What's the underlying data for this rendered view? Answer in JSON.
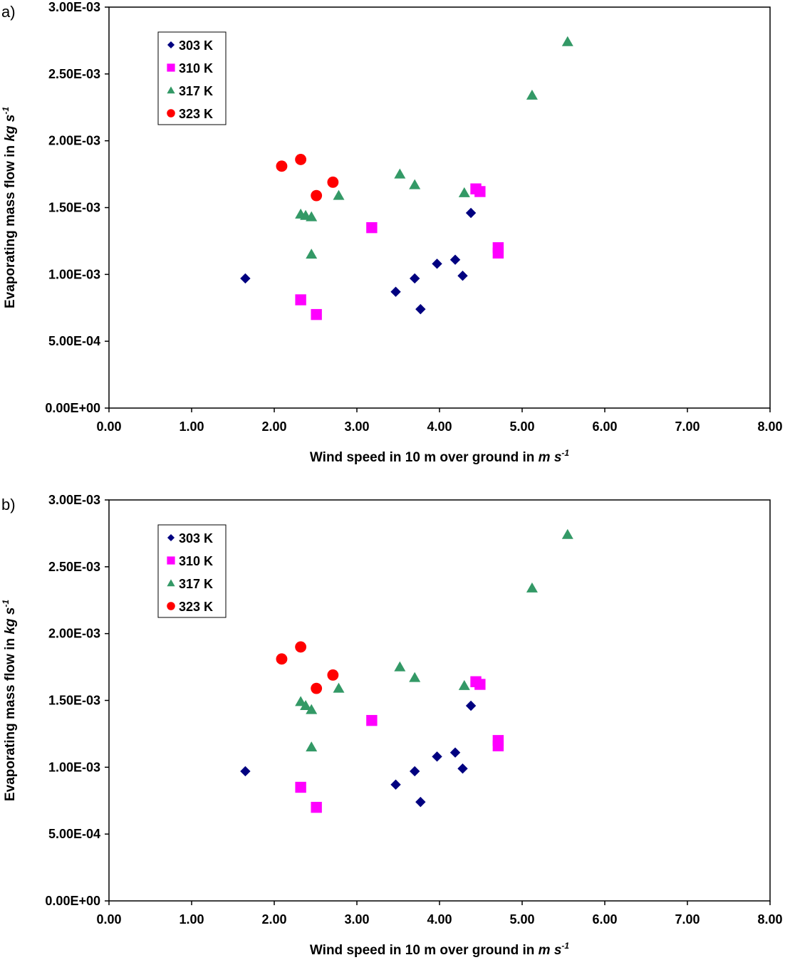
{
  "chart_data": [
    {
      "type": "scatter",
      "panel_label": "a)",
      "xlabel": "Wind speed in 10 m over ground in",
      "xlabel_unit": "m s",
      "xlabel_exp": "-1",
      "ylabel": "Evaporating mass flow in",
      "ylabel_unit": "kg s",
      "ylabel_exp": "-1",
      "xlim": [
        0,
        8
      ],
      "ylim": [
        0,
        0.003
      ],
      "x_ticks": [
        "0.00",
        "1.00",
        "2.00",
        "3.00",
        "4.00",
        "5.00",
        "6.00",
        "7.00",
        "8.00"
      ],
      "y_ticks": [
        "0.00E+00",
        "5.00E-04",
        "1.00E-03",
        "1.50E-03",
        "2.00E-03",
        "2.50E-03",
        "3.00E-03"
      ],
      "grid": false,
      "legend_position": "top-left",
      "series": [
        {
          "name": "303 K",
          "marker": "diamond",
          "color": "#000080",
          "points": [
            [
              1.65,
              0.00097
            ],
            [
              3.47,
              0.00087
            ],
            [
              3.7,
              0.00097
            ],
            [
              3.77,
              0.00074
            ],
            [
              3.97,
              0.00108
            ],
            [
              4.19,
              0.00111
            ],
            [
              4.28,
              0.00099
            ],
            [
              4.38,
              0.00146
            ]
          ]
        },
        {
          "name": "310 K",
          "marker": "square",
          "color": "#ff00ff",
          "points": [
            [
              2.32,
              0.00081
            ],
            [
              2.51,
              0.0007
            ],
            [
              3.18,
              0.00135
            ],
            [
              4.44,
              0.00164
            ],
            [
              4.49,
              0.00162
            ],
            [
              4.71,
              0.0012
            ],
            [
              4.71,
              0.00116
            ]
          ]
        },
        {
          "name": "317 K",
          "marker": "triangle",
          "color": "#339966",
          "points": [
            [
              2.32,
              0.00145
            ],
            [
              2.38,
              0.00144
            ],
            [
              2.45,
              0.00143
            ],
            [
              2.45,
              0.00115
            ],
            [
              2.78,
              0.00159
            ],
            [
              3.52,
              0.00175
            ],
            [
              3.7,
              0.00167
            ],
            [
              4.3,
              0.00161
            ],
            [
              5.12,
              0.00234
            ],
            [
              5.55,
              0.00274
            ]
          ]
        },
        {
          "name": "323 K",
          "marker": "circle",
          "color": "#ff0000",
          "points": [
            [
              2.09,
              0.00181
            ],
            [
              2.32,
              0.00186
            ],
            [
              2.51,
              0.00159
            ],
            [
              2.71,
              0.00169
            ]
          ]
        }
      ]
    },
    {
      "type": "scatter",
      "panel_label": "b)",
      "xlabel": "Wind speed in 10 m over ground in",
      "xlabel_unit": "m s",
      "xlabel_exp": "-1",
      "ylabel": "Evaporating mass flow in",
      "ylabel_unit": "kg s",
      "ylabel_exp": "-1",
      "xlim": [
        0,
        8
      ],
      "ylim": [
        0,
        0.003
      ],
      "x_ticks": [
        "0.00",
        "1.00",
        "2.00",
        "3.00",
        "4.00",
        "5.00",
        "6.00",
        "7.00",
        "8.00"
      ],
      "y_ticks": [
        "0.00E+00",
        "5.00E-04",
        "1.00E-03",
        "1.50E-03",
        "2.00E-03",
        "2.50E-03",
        "3.00E-03"
      ],
      "grid": false,
      "legend_position": "top-left",
      "series": [
        {
          "name": "303 K",
          "marker": "diamond",
          "color": "#000080",
          "points": [
            [
              1.65,
              0.00097
            ],
            [
              3.47,
              0.00087
            ],
            [
              3.7,
              0.00097
            ],
            [
              3.77,
              0.00074
            ],
            [
              3.97,
              0.00108
            ],
            [
              4.19,
              0.00111
            ],
            [
              4.28,
              0.00099
            ],
            [
              4.38,
              0.00146
            ]
          ]
        },
        {
          "name": "310 K",
          "marker": "square",
          "color": "#ff00ff",
          "points": [
            [
              2.32,
              0.00085
            ],
            [
              2.51,
              0.0007
            ],
            [
              3.18,
              0.00135
            ],
            [
              4.44,
              0.00164
            ],
            [
              4.49,
              0.00162
            ],
            [
              4.71,
              0.0012
            ],
            [
              4.71,
              0.00116
            ]
          ]
        },
        {
          "name": "317 K",
          "marker": "triangle",
          "color": "#339966",
          "points": [
            [
              2.32,
              0.00149
            ],
            [
              2.38,
              0.00146
            ],
            [
              2.45,
              0.00143
            ],
            [
              2.45,
              0.00115
            ],
            [
              2.78,
              0.00159
            ],
            [
              3.52,
              0.00175
            ],
            [
              3.7,
              0.00167
            ],
            [
              4.3,
              0.00161
            ],
            [
              5.12,
              0.00234
            ],
            [
              5.55,
              0.00274
            ]
          ]
        },
        {
          "name": "323 K",
          "marker": "circle",
          "color": "#ff0000",
          "points": [
            [
              2.09,
              0.00181
            ],
            [
              2.32,
              0.0019
            ],
            [
              2.51,
              0.00159
            ],
            [
              2.71,
              0.00169
            ]
          ]
        }
      ]
    }
  ]
}
